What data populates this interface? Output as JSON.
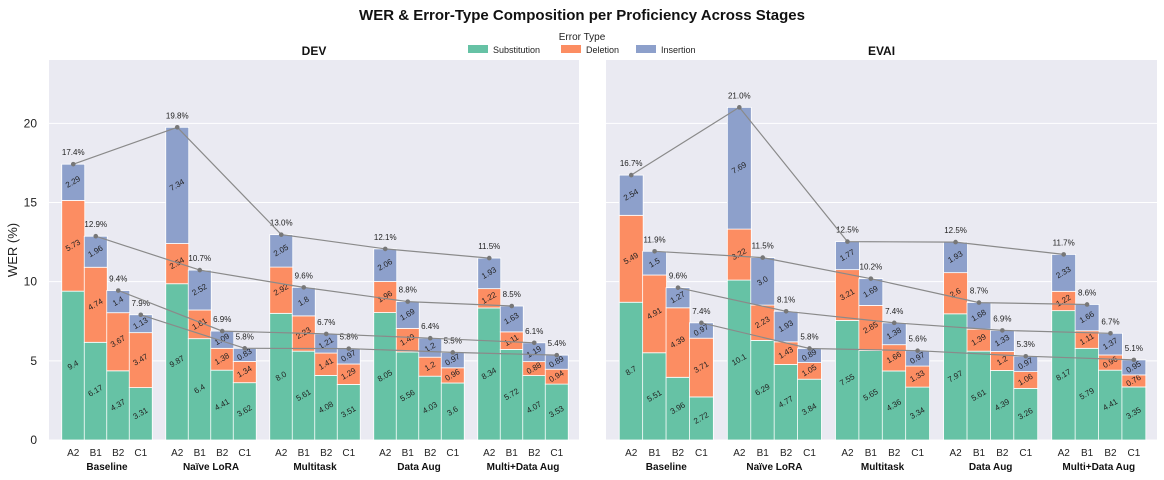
{
  "chart_data": {
    "type": "bar",
    "title": "WER & Error-Type Composition per Proficiency Across Stages",
    "ylabel": "WER (%)",
    "ylim": [
      0,
      24
    ],
    "yticks": [
      "0",
      "5",
      "10",
      "15",
      "20"
    ],
    "legend": {
      "title": "Error Type",
      "position": "top-center",
      "entries": [
        {
          "key": "sub",
          "label": "Substitution",
          "color": "#66c2a5"
        },
        {
          "key": "del",
          "label": "Deletion",
          "color": "#fc8d62"
        },
        {
          "key": "ins",
          "label": "Insertion",
          "color": "#8da0cb"
        }
      ]
    },
    "line_color": "#8a8a8a",
    "panels": [
      {
        "title": "DEV",
        "groups": [
          "Baseline",
          "Naïve LoRA",
          "Multitask",
          "Data Aug",
          "Multi+Data Aug"
        ],
        "levels": [
          "A2",
          "B1",
          "B2",
          "C1"
        ],
        "bars": [
          [
            {
              "sub": 9.4,
              "del": 5.73,
              "ins": 2.29,
              "total": "17.4%",
              "sub_label": "9.4",
              "del_label": "5.73",
              "ins_label": "2.29"
            },
            {
              "sub": 6.17,
              "del": 4.74,
              "ins": 1.96,
              "total": "12.9%",
              "sub_label": "6.17",
              "del_label": "4.74",
              "ins_label": "1.96"
            },
            {
              "sub": 4.37,
              "del": 3.67,
              "ins": 1.4,
              "total": "9.4%",
              "sub_label": "4.37",
              "del_label": "3.67",
              "ins_label": "1.4"
            },
            {
              "sub": 3.31,
              "del": 3.47,
              "ins": 1.13,
              "total": "7.9%",
              "sub_label": "3.31",
              "del_label": "3.47",
              "ins_label": "1.13"
            }
          ],
          [
            {
              "sub": 9.87,
              "del": 2.54,
              "ins": 7.34,
              "total": "19.8%",
              "sub_label": "9.87",
              "del_label": "2.54",
              "ins_label": "7.34"
            },
            {
              "sub": 6.4,
              "del": 1.81,
              "ins": 2.52,
              "total": "10.7%",
              "sub_label": "6.4",
              "del_label": "1.81",
              "ins_label": "2.52"
            },
            {
              "sub": 4.41,
              "del": 1.38,
              "ins": 1.09,
              "total": "6.9%",
              "sub_label": "4.41",
              "del_label": "1.38",
              "ins_label": "1.09"
            },
            {
              "sub": 3.62,
              "del": 1.34,
              "ins": 0.83,
              "total": "5.8%",
              "sub_label": "3.62",
              "del_label": "1.34",
              "ins_label": "0.83"
            }
          ],
          [
            {
              "sub": 8.0,
              "del": 2.92,
              "ins": 2.05,
              "total": "13.0%",
              "sub_label": "8.0",
              "del_label": "2.92",
              "ins_label": "2.05"
            },
            {
              "sub": 5.61,
              "del": 2.23,
              "ins": 1.8,
              "total": "9.6%",
              "sub_label": "5.61",
              "del_label": "2.23",
              "ins_label": "1.8"
            },
            {
              "sub": 4.08,
              "del": 1.41,
              "ins": 1.21,
              "total": "6.7%",
              "sub_label": "4.08",
              "del_label": "1.41",
              "ins_label": "1.21"
            },
            {
              "sub": 3.51,
              "del": 1.29,
              "ins": 0.97,
              "total": "5.8%",
              "sub_label": "3.51",
              "del_label": "1.29",
              "ins_label": "0.97"
            }
          ],
          [
            {
              "sub": 8.05,
              "del": 1.96,
              "ins": 2.06,
              "total": "12.1%",
              "sub_label": "8.05",
              "del_label": "1.96",
              "ins_label": "2.06"
            },
            {
              "sub": 5.56,
              "del": 1.49,
              "ins": 1.69,
              "total": "8.8%",
              "sub_label": "5.56",
              "del_label": "1.49",
              "ins_label": "1.69"
            },
            {
              "sub": 4.03,
              "del": 1.2,
              "ins": 1.2,
              "total": "6.4%",
              "sub_label": "4.03",
              "del_label": "1.2",
              "ins_label": "1.2"
            },
            {
              "sub": 3.6,
              "del": 0.96,
              "ins": 0.97,
              "total": "5.5%",
              "sub_label": "3.6",
              "del_label": "0.96",
              "ins_label": "0.97"
            }
          ],
          [
            {
              "sub": 8.34,
              "del": 1.22,
              "ins": 1.93,
              "total": "11.5%",
              "sub_label": "8.34",
              "del_label": "1.22",
              "ins_label": "1.93"
            },
            {
              "sub": 5.72,
              "del": 1.11,
              "ins": 1.63,
              "total": "8.5%",
              "sub_label": "5.72",
              "del_label": "1.11",
              "ins_label": "1.63"
            },
            {
              "sub": 4.07,
              "del": 0.88,
              "ins": 1.19,
              "total": "6.1%",
              "sub_label": "4.07",
              "del_label": "0.88",
              "ins_label": "1.19"
            },
            {
              "sub": 3.53,
              "del": 0.94,
              "ins": 0.89,
              "total": "5.4%",
              "sub_label": "3.53",
              "del_label": "0.94",
              "ins_label": "0.89"
            }
          ]
        ]
      },
      {
        "title": "EVAI",
        "groups": [
          "Baseline",
          "Naïve LoRA",
          "Multitask",
          "Data Aug",
          "Multi+Data Aug"
        ],
        "levels": [
          "A2",
          "B1",
          "B2",
          "C1"
        ],
        "bars": [
          [
            {
              "sub": 8.7,
              "del": 5.49,
              "ins": 2.54,
              "total": "16.7%",
              "sub_label": "8.7",
              "del_label": "5.49",
              "ins_label": "2.54"
            },
            {
              "sub": 5.51,
              "del": 4.91,
              "ins": 1.5,
              "total": "11.9%",
              "sub_label": "5.51",
              "del_label": "4.91",
              "ins_label": "1.5"
            },
            {
              "sub": 3.96,
              "del": 4.39,
              "ins": 1.27,
              "total": "9.6%",
              "sub_label": "3.96",
              "del_label": "4.39",
              "ins_label": "1.27"
            },
            {
              "sub": 2.72,
              "del": 3.71,
              "ins": 0.97,
              "total": "7.4%",
              "sub_label": "2.72",
              "del_label": "3.71",
              "ins_label": "0.97"
            }
          ],
          [
            {
              "sub": 10.1,
              "del": 3.22,
              "ins": 7.69,
              "total": "21.0%",
              "sub_label": "10.1",
              "del_label": "3.22",
              "ins_label": "7.69"
            },
            {
              "sub": 6.29,
              "del": 2.23,
              "ins": 3.0,
              "total": "11.5%",
              "sub_label": "6.29",
              "del_label": "2.23",
              "ins_label": "3.0"
            },
            {
              "sub": 4.77,
              "del": 1.43,
              "ins": 1.93,
              "total": "8.1%",
              "sub_label": "4.77",
              "del_label": "1.43",
              "ins_label": "1.93"
            },
            {
              "sub": 3.84,
              "del": 1.05,
              "ins": 0.89,
              "total": "5.8%",
              "sub_label": "3.84",
              "del_label": "1.05",
              "ins_label": "0.89"
            }
          ],
          [
            {
              "sub": 7.55,
              "del": 3.21,
              "ins": 1.77,
              "total": "12.5%",
              "sub_label": "7.55",
              "del_label": "3.21",
              "ins_label": "1.77"
            },
            {
              "sub": 5.65,
              "del": 2.85,
              "ins": 1.69,
              "total": "10.2%",
              "sub_label": "5.65",
              "del_label": "2.85",
              "ins_label": "1.69"
            },
            {
              "sub": 4.36,
              "del": 1.66,
              "ins": 1.38,
              "total": "7.4%",
              "sub_label": "4.36",
              "del_label": "1.66",
              "ins_label": "1.38"
            },
            {
              "sub": 3.34,
              "del": 1.33,
              "ins": 0.97,
              "total": "5.6%",
              "sub_label": "3.34",
              "del_label": "1.33",
              "ins_label": "0.97"
            }
          ],
          [
            {
              "sub": 7.97,
              "del": 2.6,
              "ins": 1.93,
              "total": "12.5%",
              "sub_label": "7.97",
              "del_label": "2.6",
              "ins_label": "1.93"
            },
            {
              "sub": 5.61,
              "del": 1.39,
              "ins": 1.68,
              "total": "8.7%",
              "sub_label": "5.61",
              "del_label": "1.39",
              "ins_label": "1.68"
            },
            {
              "sub": 4.39,
              "del": 1.2,
              "ins": 1.33,
              "total": "6.9%",
              "sub_label": "4.39",
              "del_label": "1.2",
              "ins_label": "1.33"
            },
            {
              "sub": 3.26,
              "del": 1.06,
              "ins": 0.97,
              "total": "5.3%",
              "sub_label": "3.26",
              "del_label": "1.06",
              "ins_label": "0.97"
            }
          ],
          [
            {
              "sub": 8.17,
              "del": 1.22,
              "ins": 2.33,
              "total": "11.7%",
              "sub_label": "8.17",
              "del_label": "1.22",
              "ins_label": "2.33"
            },
            {
              "sub": 5.79,
              "del": 1.11,
              "ins": 1.66,
              "total": "8.6%",
              "sub_label": "5.79",
              "del_label": "1.11",
              "ins_label": "1.66"
            },
            {
              "sub": 4.41,
              "del": 0.96,
              "ins": 1.37,
              "total": "6.7%",
              "sub_label": "4.41",
              "del_label": "0.96",
              "ins_label": "1.37"
            },
            {
              "sub": 3.35,
              "del": 0.76,
              "ins": 0.95,
              "total": "5.1%",
              "sub_label": "3.35",
              "del_label": "0.76",
              "ins_label": "0.95"
            }
          ]
        ]
      }
    ]
  }
}
